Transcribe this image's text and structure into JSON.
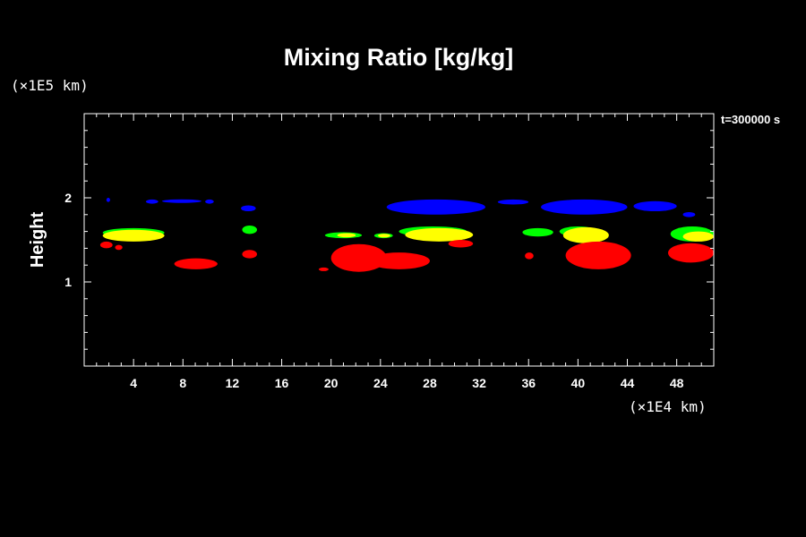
{
  "chart_data": {
    "type": "scatter",
    "title": "Mixing Ratio [kg/kg]",
    "ylabel": "Height",
    "y_scale_note": "(×1E5 km)",
    "x_scale_note": "(×1E4 km)",
    "time_label": "t=300000 s",
    "xlim": [
      0,
      51
    ],
    "ylim": [
      0,
      3
    ],
    "x_ticks": [
      4,
      8,
      12,
      16,
      20,
      24,
      28,
      32,
      36,
      40,
      44,
      48
    ],
    "y_ticks": [
      1,
      2
    ],
    "grid": false,
    "legend": "none",
    "series": [
      {
        "color": "#0000ff",
        "patches": [
          {
            "x0": 1.8,
            "x1": 2.1,
            "y0": 1.95,
            "y1": 2.0
          },
          {
            "x0": 5.0,
            "x1": 6.0,
            "y0": 1.93,
            "y1": 1.98
          },
          {
            "x0": 6.3,
            "x1": 9.5,
            "y0": 1.94,
            "y1": 1.98
          },
          {
            "x0": 9.8,
            "x1": 10.5,
            "y0": 1.93,
            "y1": 1.98
          },
          {
            "x0": 12.7,
            "x1": 13.9,
            "y0": 1.84,
            "y1": 1.91
          },
          {
            "x0": 24.5,
            "x1": 32.5,
            "y0": 1.8,
            "y1": 1.98
          },
          {
            "x0": 33.5,
            "x1": 36.0,
            "y0": 1.92,
            "y1": 1.98
          },
          {
            "x0": 37.0,
            "x1": 44.0,
            "y0": 1.8,
            "y1": 1.98
          },
          {
            "x0": 44.5,
            "x1": 48.0,
            "y0": 1.84,
            "y1": 1.96
          },
          {
            "x0": 48.5,
            "x1": 49.5,
            "y0": 1.77,
            "y1": 1.83
          }
        ]
      },
      {
        "color": "#00ff00",
        "patches": [
          {
            "x0": 1.5,
            "x1": 6.5,
            "y0": 1.53,
            "y1": 1.64
          },
          {
            "x0": 12.8,
            "x1": 14.0,
            "y0": 1.57,
            "y1": 1.67
          },
          {
            "x0": 19.5,
            "x1": 22.5,
            "y0": 1.52,
            "y1": 1.59
          },
          {
            "x0": 23.5,
            "x1": 25.0,
            "y0": 1.52,
            "y1": 1.58
          },
          {
            "x0": 25.5,
            "x1": 31.0,
            "y0": 1.54,
            "y1": 1.66
          },
          {
            "x0": 35.5,
            "x1": 38.0,
            "y0": 1.54,
            "y1": 1.64
          },
          {
            "x0": 38.5,
            "x1": 41.5,
            "y0": 1.54,
            "y1": 1.66
          },
          {
            "x0": 47.5,
            "x1": 51.0,
            "y0": 1.48,
            "y1": 1.66
          }
        ]
      },
      {
        "color": "#ffff00",
        "patches": [
          {
            "x0": 1.5,
            "x1": 6.5,
            "y0": 1.48,
            "y1": 1.62
          },
          {
            "x0": 20.5,
            "x1": 22.0,
            "y0": 1.53,
            "y1": 1.58
          },
          {
            "x0": 23.8,
            "x1": 24.8,
            "y0": 1.53,
            "y1": 1.57
          },
          {
            "x0": 26.0,
            "x1": 31.5,
            "y0": 1.48,
            "y1": 1.64
          },
          {
            "x0": 38.8,
            "x1": 42.5,
            "y0": 1.46,
            "y1": 1.65
          },
          {
            "x0": 48.5,
            "x1": 51.0,
            "y0": 1.48,
            "y1": 1.6
          }
        ]
      },
      {
        "color": "#ff0000",
        "patches": [
          {
            "x0": 1.3,
            "x1": 2.3,
            "y0": 1.4,
            "y1": 1.48
          },
          {
            "x0": 2.5,
            "x1": 3.1,
            "y0": 1.38,
            "y1": 1.44
          },
          {
            "x0": 7.3,
            "x1": 10.8,
            "y0": 1.15,
            "y1": 1.28
          },
          {
            "x0": 12.8,
            "x1": 14.0,
            "y0": 1.28,
            "y1": 1.38
          },
          {
            "x0": 19.0,
            "x1": 19.8,
            "y0": 1.13,
            "y1": 1.17
          },
          {
            "x0": 20.0,
            "x1": 24.5,
            "y0": 1.12,
            "y1": 1.45
          },
          {
            "x0": 23.0,
            "x1": 28.0,
            "y0": 1.15,
            "y1": 1.35
          },
          {
            "x0": 29.5,
            "x1": 31.5,
            "y0": 1.41,
            "y1": 1.5
          },
          {
            "x0": 35.7,
            "x1": 36.4,
            "y0": 1.27,
            "y1": 1.35
          },
          {
            "x0": 39.0,
            "x1": 44.3,
            "y0": 1.15,
            "y1": 1.48
          },
          {
            "x0": 47.3,
            "x1": 51.0,
            "y0": 1.23,
            "y1": 1.46
          }
        ]
      }
    ]
  }
}
